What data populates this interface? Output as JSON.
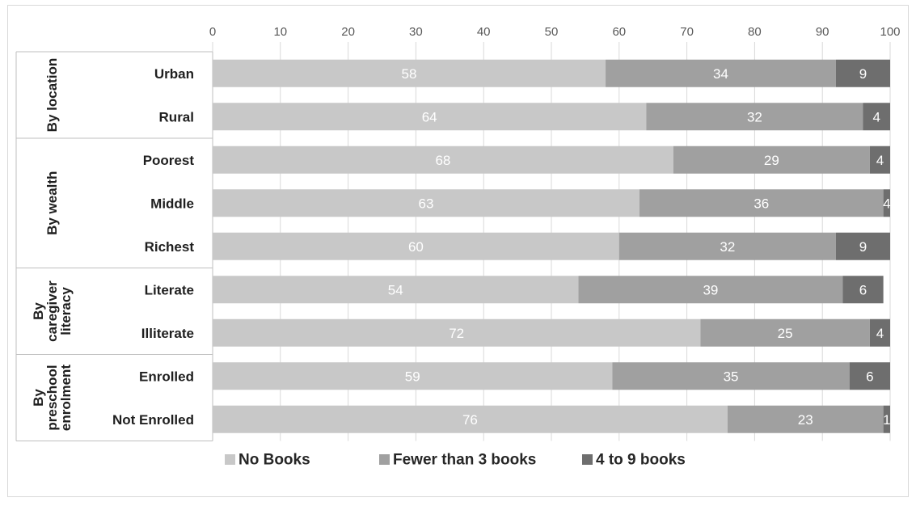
{
  "chart_data": {
    "type": "bar",
    "orientation": "horizontal",
    "stacked": true,
    "xlim": [
      0,
      100
    ],
    "x_ticks": [
      "0",
      "10",
      "20",
      "30",
      "40",
      "50",
      "60",
      "70",
      "80",
      "90",
      "100"
    ],
    "grid": true,
    "legend_position": "bottom",
    "groups": [
      {
        "label_lines": [
          "By location"
        ],
        "categories": [
          "Urban",
          "Rural"
        ]
      },
      {
        "label_lines": [
          "By wealth"
        ],
        "categories": [
          "Poorest",
          "Middle",
          "Richest"
        ]
      },
      {
        "label_lines": [
          "By",
          "caregiver",
          "literacy"
        ],
        "categories": [
          "Literate",
          "Illiterate"
        ]
      },
      {
        "label_lines": [
          "By",
          "preschool",
          "enrolment"
        ],
        "categories": [
          "Enrolled",
          "Not Enrolled"
        ]
      }
    ],
    "categories": [
      "Urban",
      "Rural",
      "Poorest",
      "Middle",
      "Richest",
      "Literate",
      "Illiterate",
      "Enrolled",
      "Not Enrolled"
    ],
    "series": [
      {
        "name": "No Books",
        "color": "#c8c8c8",
        "values": [
          58,
          64,
          68,
          63,
          60,
          54,
          72,
          59,
          76
        ]
      },
      {
        "name": "Fewer than 3 books",
        "color": "#a0a0a0",
        "values": [
          34,
          32,
          29,
          36,
          32,
          39,
          25,
          35,
          23
        ]
      },
      {
        "name": "4 to 9 books",
        "color": "#6e6e6e",
        "values": [
          9,
          4,
          4,
          4,
          9,
          6,
          4,
          6,
          1
        ]
      }
    ]
  }
}
